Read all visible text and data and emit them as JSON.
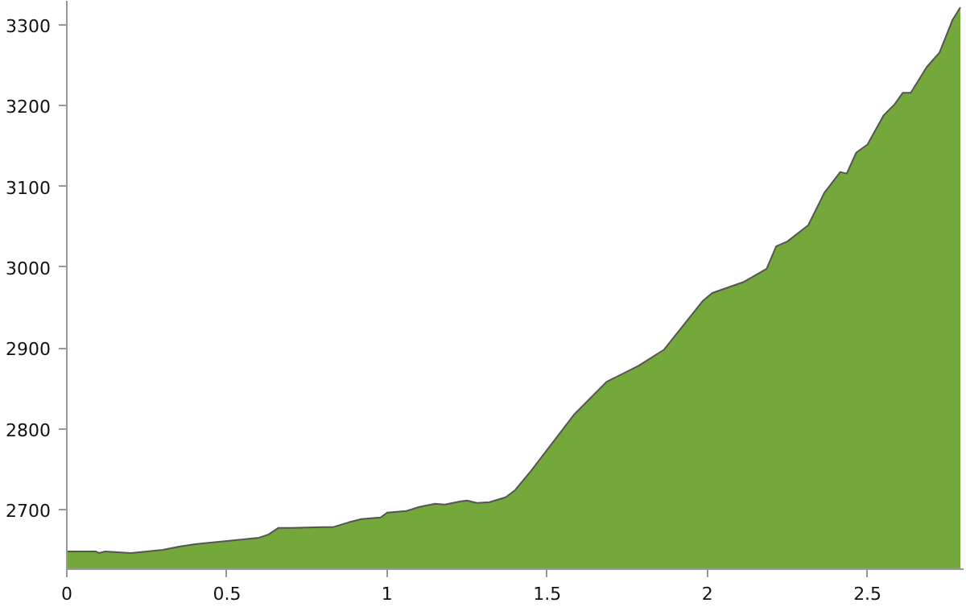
{
  "chart_data": {
    "type": "area",
    "color": "#74a83a",
    "grid": false,
    "marker": "none",
    "x": [
      0,
      0.09,
      0.1,
      0.12,
      0.2,
      0.25,
      0.3,
      0.35,
      0.4,
      0.5,
      0.6,
      0.63,
      0.66,
      0.7,
      0.8,
      0.83,
      0.88,
      0.92,
      0.98,
      1.0,
      1.06,
      1.1,
      1.15,
      1.18,
      1.23,
      1.25,
      1.28,
      1.32,
      1.37,
      1.4,
      1.45,
      1.585,
      1.685,
      1.785,
      1.865,
      1.985,
      2.015,
      2.115,
      2.185,
      2.215,
      2.25,
      2.315,
      2.365,
      2.415,
      2.435,
      2.465,
      2.5,
      2.55,
      2.585,
      2.61,
      2.635,
      2.685,
      2.725,
      2.765,
      2.79
    ],
    "values": [
      2648,
      2648,
      2646,
      2648,
      2646,
      2648,
      2650,
      2654,
      2657,
      2661,
      2665,
      2669,
      2677,
      2677,
      2678,
      2678,
      2684,
      2688,
      2690,
      2696,
      2698,
      2703,
      2707,
      2706,
      2710,
      2711,
      2708,
      2709,
      2715,
      2724,
      2748,
      2818,
      2858,
      2878,
      2898,
      2958,
      2968,
      2982,
      2998,
      3026,
      3032,
      3052,
      3092,
      3118,
      3116,
      3142,
      3152,
      3188,
      3202,
      3216,
      3216,
      3248,
      3266,
      3306,
      3322
    ],
    "xlim": [
      0,
      2.8
    ],
    "ylim": [
      2626,
      3330
    ],
    "xticks": [
      0,
      0.5,
      1,
      1.5,
      2,
      2.5
    ],
    "yticks": [
      2700,
      2800,
      2900,
      3000,
      3100,
      3200,
      3300
    ]
  }
}
